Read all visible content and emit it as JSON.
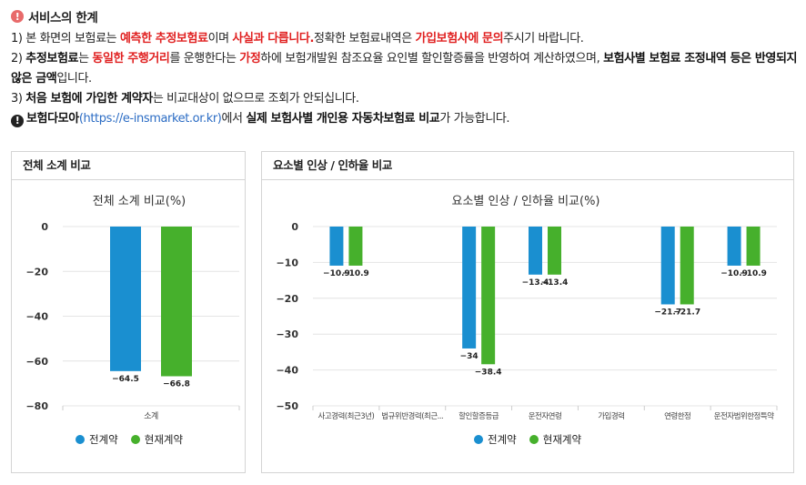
{
  "notice": {
    "title": "서비스의 한계",
    "line1": {
      "a": "1) 본 화면의 보험료는 ",
      "b": "예측한 추정보험료",
      "c": "이며 ",
      "d": "사실과 다릅니다.",
      "e": "정확한 보험료내역은 ",
      "f": "가입보험사에 문의",
      "g": "주시기 바랍니다."
    },
    "line2": {
      "a": "2) ",
      "b": "추정보험료",
      "c": "는 ",
      "d": "동일한 주행거리",
      "e": "를 운행한다는 ",
      "f": "가정",
      "g": "하에 보험개발원 참조요율 요인별 할인할증률을 반영하여 계산하였으며, ",
      "h": "보험사별 보험료 조정내역 등은 반영되지 않은 금액",
      "i": "입니다."
    },
    "line3": {
      "a": "3) ",
      "b": "처음 보험에 가입한 계약자",
      "c": "는 비교대상이 없으므로 조회가 안되십니다."
    },
    "line4": {
      "a": "보험다모아",
      "b": "(https://e-insmarket.or.kr)",
      "c": "에서 ",
      "d": "실제 보험사별 개인용 자동차보험료 비교",
      "e": "가 가능합니다."
    }
  },
  "colors": {
    "series1": "#1a8fd0",
    "series2": "#46b02c",
    "red": "#e02020",
    "link": "#2b6cc4"
  },
  "left_panel": {
    "header": "전체 소계 비교"
  },
  "right_panel": {
    "header": "요소별 인상 / 인하율 비교"
  },
  "legend": {
    "s1": "전계약",
    "s2": "현재계약"
  },
  "chart_data": [
    {
      "type": "bar",
      "title": "전체 소계 비교(%)",
      "categories": [
        "소계"
      ],
      "series": [
        {
          "name": "전계약",
          "values": [
            -64.5
          ]
        },
        {
          "name": "현재계약",
          "values": [
            -66.8
          ]
        }
      ],
      "ylim": [
        -80,
        0
      ],
      "yticks": [
        0,
        -20,
        -40,
        -60,
        -80
      ],
      "grid": true,
      "legend": "bottom"
    },
    {
      "type": "bar",
      "title": "요소별 인상 / 인하율 비교(%)",
      "categories": [
        "사고경력(최근3년)",
        "법규위반경력(최근...",
        "할인할증등급",
        "운전자연령",
        "가입경력",
        "연령한정",
        "운전자범위한정특약"
      ],
      "series": [
        {
          "name": "전계약",
          "values": [
            -10.9,
            null,
            -34,
            -13.4,
            null,
            -21.7,
            -10.9
          ]
        },
        {
          "name": "현재계약",
          "values": [
            -10.9,
            null,
            -38.4,
            -13.4,
            null,
            -21.7,
            -10.9
          ]
        }
      ],
      "ylim": [
        -50,
        0
      ],
      "yticks": [
        0,
        -10,
        -20,
        -30,
        -40,
        -50
      ],
      "grid": true,
      "legend": "bottom"
    }
  ]
}
